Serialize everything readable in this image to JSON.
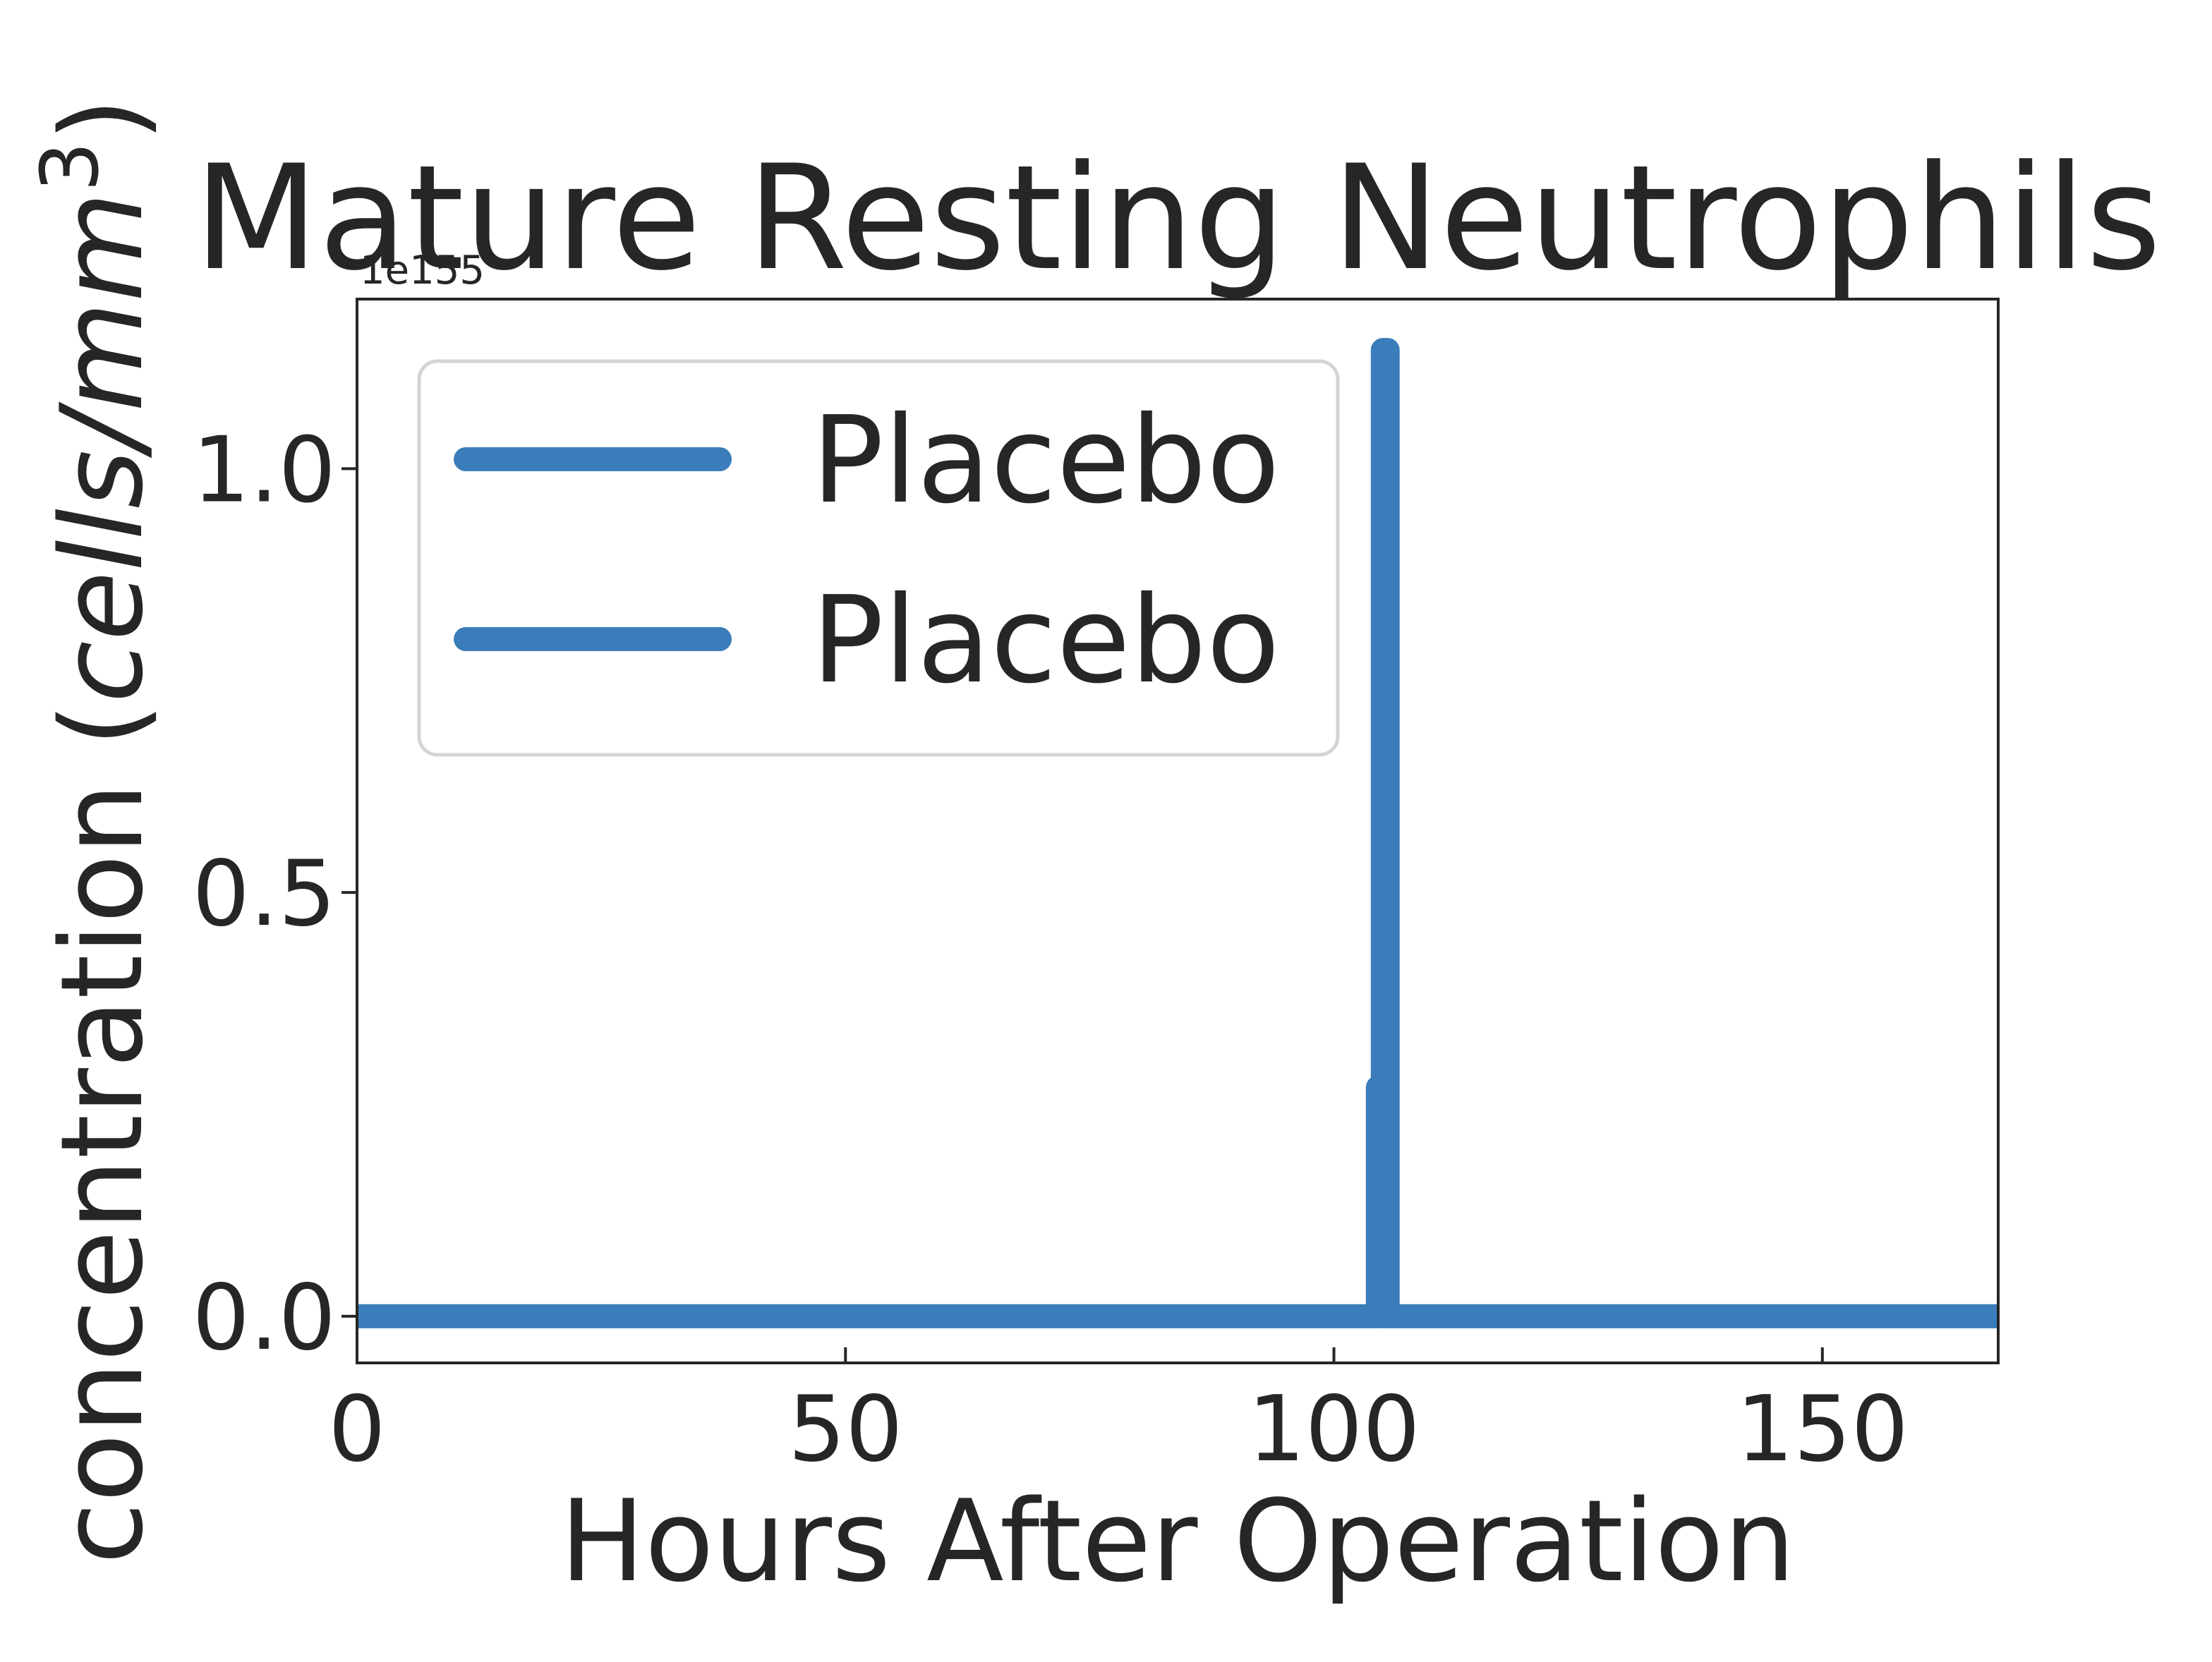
{
  "chart_data": {
    "type": "line",
    "title": "Mature Resting Neutrophils",
    "xlabel": "Hours After Operation",
    "ylabel_main": "concentration (",
    "ylabel_unit": "cells/mm",
    "ylabel_sup": "3",
    "ylabel_close": ")",
    "y_offset_label": "1e155",
    "xlim": [
      0,
      168
    ],
    "ylim": [
      -0.055,
      1.2
    ],
    "x_ticks": [
      0,
      50,
      100,
      150
    ],
    "x_tick_labels": [
      "0",
      "50",
      "100",
      "150"
    ],
    "y_ticks": [
      0.0,
      0.5,
      1.0
    ],
    "y_tick_labels": [
      "0.0",
      "0.5",
      "1.0"
    ],
    "grid": false,
    "legend": "top-left",
    "series": [
      {
        "name": "Placebo",
        "color": "#3a7dba",
        "x": [
          0,
          104.5,
          104.5,
          105.0,
          105.0,
          105.5,
          105.5,
          168
        ],
        "y": [
          0,
          0,
          0.27,
          0.27,
          1.14,
          1.14,
          0,
          0
        ]
      },
      {
        "name": "Placebo",
        "color": "#3a7dba",
        "x": [
          0,
          168
        ],
        "y": [
          0,
          0
        ]
      }
    ]
  }
}
